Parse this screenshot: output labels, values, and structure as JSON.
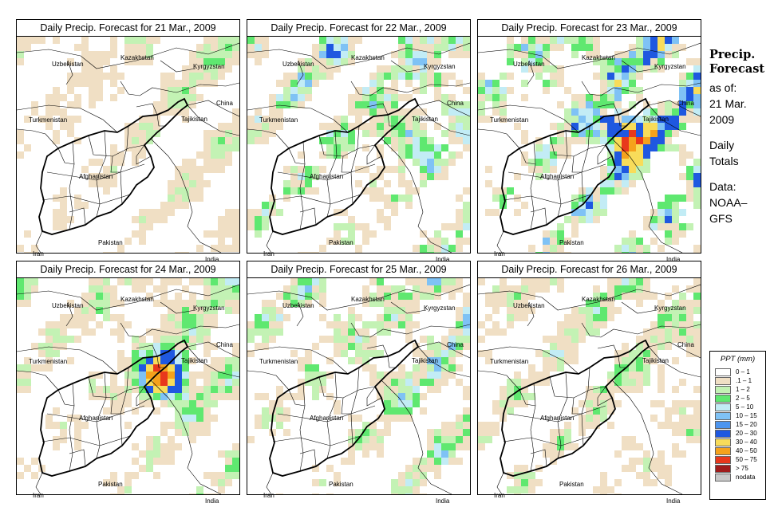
{
  "panels": [
    {
      "title": "Daily Precip. Forecast for  21 Mar., 2009",
      "seed": 3,
      "intensity": 0.35,
      "hotspot": 0
    },
    {
      "title": "Daily Precip. Forecast for  22 Mar., 2009",
      "seed": 7,
      "intensity": 0.75,
      "hotspot": 0.3
    },
    {
      "title": "Daily Precip. Forecast for  23 Mar., 2009",
      "seed": 11,
      "intensity": 1.0,
      "hotspot": 1
    },
    {
      "title": "Daily Precip. Forecast for  24 Mar., 2009",
      "seed": 5,
      "intensity": 0.5,
      "hotspot": 0.9
    },
    {
      "title": "Daily Precip. Forecast for  25 Mar., 2009",
      "seed": 13,
      "intensity": 0.65,
      "hotspot": 0.1
    },
    {
      "title": "Daily Precip. Forecast for  26 Mar., 2009",
      "seed": 17,
      "intensity": 0.5,
      "hotspot": 0.05
    }
  ],
  "countries": {
    "kazakhstan": "Kazakhstan",
    "uzbekistan": "Uzbekistan",
    "kyrgyzstan": "Kyrgyzstan",
    "china": "China",
    "tajikistan": "Tajikistan",
    "turkmenistan": "Turkmenistan",
    "afghanistan": "Afghanistan",
    "pakistan": "Pakistan",
    "iran": "Iran",
    "india": "India"
  },
  "side": {
    "heading1": "Precip.",
    "heading2": "Forecast",
    "line1": "as of:",
    "line2": "21 Mar.",
    "line3": "2009",
    "line4": "Daily",
    "line5": "Totals",
    "line6": "Data:",
    "line7": "NOAA–",
    "line8": "GFS"
  },
  "legend": {
    "title": "PPT (mm)",
    "items": [
      {
        "label": "0 – 1",
        "color": "#ffffff"
      },
      {
        "label": ".1 – 1",
        "color": "#f0dfc4"
      },
      {
        "label": "1 – 2",
        "color": "#c3f2b4"
      },
      {
        "label": "2 – 5",
        "color": "#5fe870"
      },
      {
        "label": "5 – 10",
        "color": "#c2ecf5"
      },
      {
        "label": "10 – 15",
        "color": "#7fc2f5"
      },
      {
        "label": "15 – 20",
        "color": "#4d95ef"
      },
      {
        "label": "20 – 30",
        "color": "#1f58e0"
      },
      {
        "label": "30 – 40",
        "color": "#f8dc5a"
      },
      {
        "label": "40 – 50",
        "color": "#f5a21c"
      },
      {
        "label": "50 – 75",
        "color": "#e8381c"
      },
      {
        "label": "> 75",
        "color": "#a01c1c"
      },
      {
        "label": "nodata",
        "color": "#c8c8c8"
      }
    ]
  }
}
